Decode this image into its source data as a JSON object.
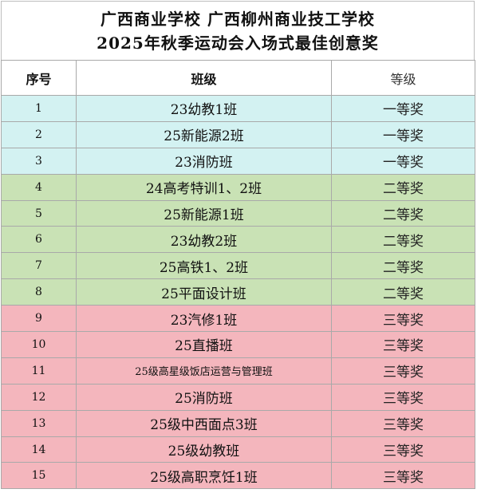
{
  "title": {
    "line1": "广西商业学校 广西柳州商业技工学校",
    "line2": "2025年秋季运动会入场式最佳创意奖"
  },
  "headers": {
    "num": "序号",
    "class": "班级",
    "grade": "等级"
  },
  "colors": {
    "first_prize": "#d3f2f2",
    "second_prize": "#c9e2b5",
    "third_prize": "#f4b6bd"
  },
  "rows": [
    {
      "num": "1",
      "class": "23幼教1班",
      "grade": "一等奖"
    },
    {
      "num": "2",
      "class": "25新能源2班",
      "grade": "一等奖"
    },
    {
      "num": "3",
      "class": "23消防班",
      "grade": "一等奖"
    },
    {
      "num": "4",
      "class": "24高考特训1、2班",
      "grade": "二等奖"
    },
    {
      "num": "5",
      "class": "25新能源1班",
      "grade": "二等奖"
    },
    {
      "num": "6",
      "class": "23幼教2班",
      "grade": "二等奖"
    },
    {
      "num": "7",
      "class": "25高铁1、2班",
      "grade": "二等奖"
    },
    {
      "num": "8",
      "class": "25平面设计班",
      "grade": "二等奖"
    },
    {
      "num": "9",
      "class": "23汽修1班",
      "grade": "三等奖"
    },
    {
      "num": "10",
      "class": "25直播班",
      "grade": "三等奖"
    },
    {
      "num": "11",
      "class": "25级高星级饭店运营与管理班",
      "grade": "三等奖"
    },
    {
      "num": "12",
      "class": "25消防班",
      "grade": "三等奖"
    },
    {
      "num": "13",
      "class": "25级中西面点3班",
      "grade": "三等奖"
    },
    {
      "num": "14",
      "class": "25级幼教班",
      "grade": "三等奖"
    },
    {
      "num": "15",
      "class": "25级高职烹饪1班",
      "grade": "三等奖"
    }
  ]
}
